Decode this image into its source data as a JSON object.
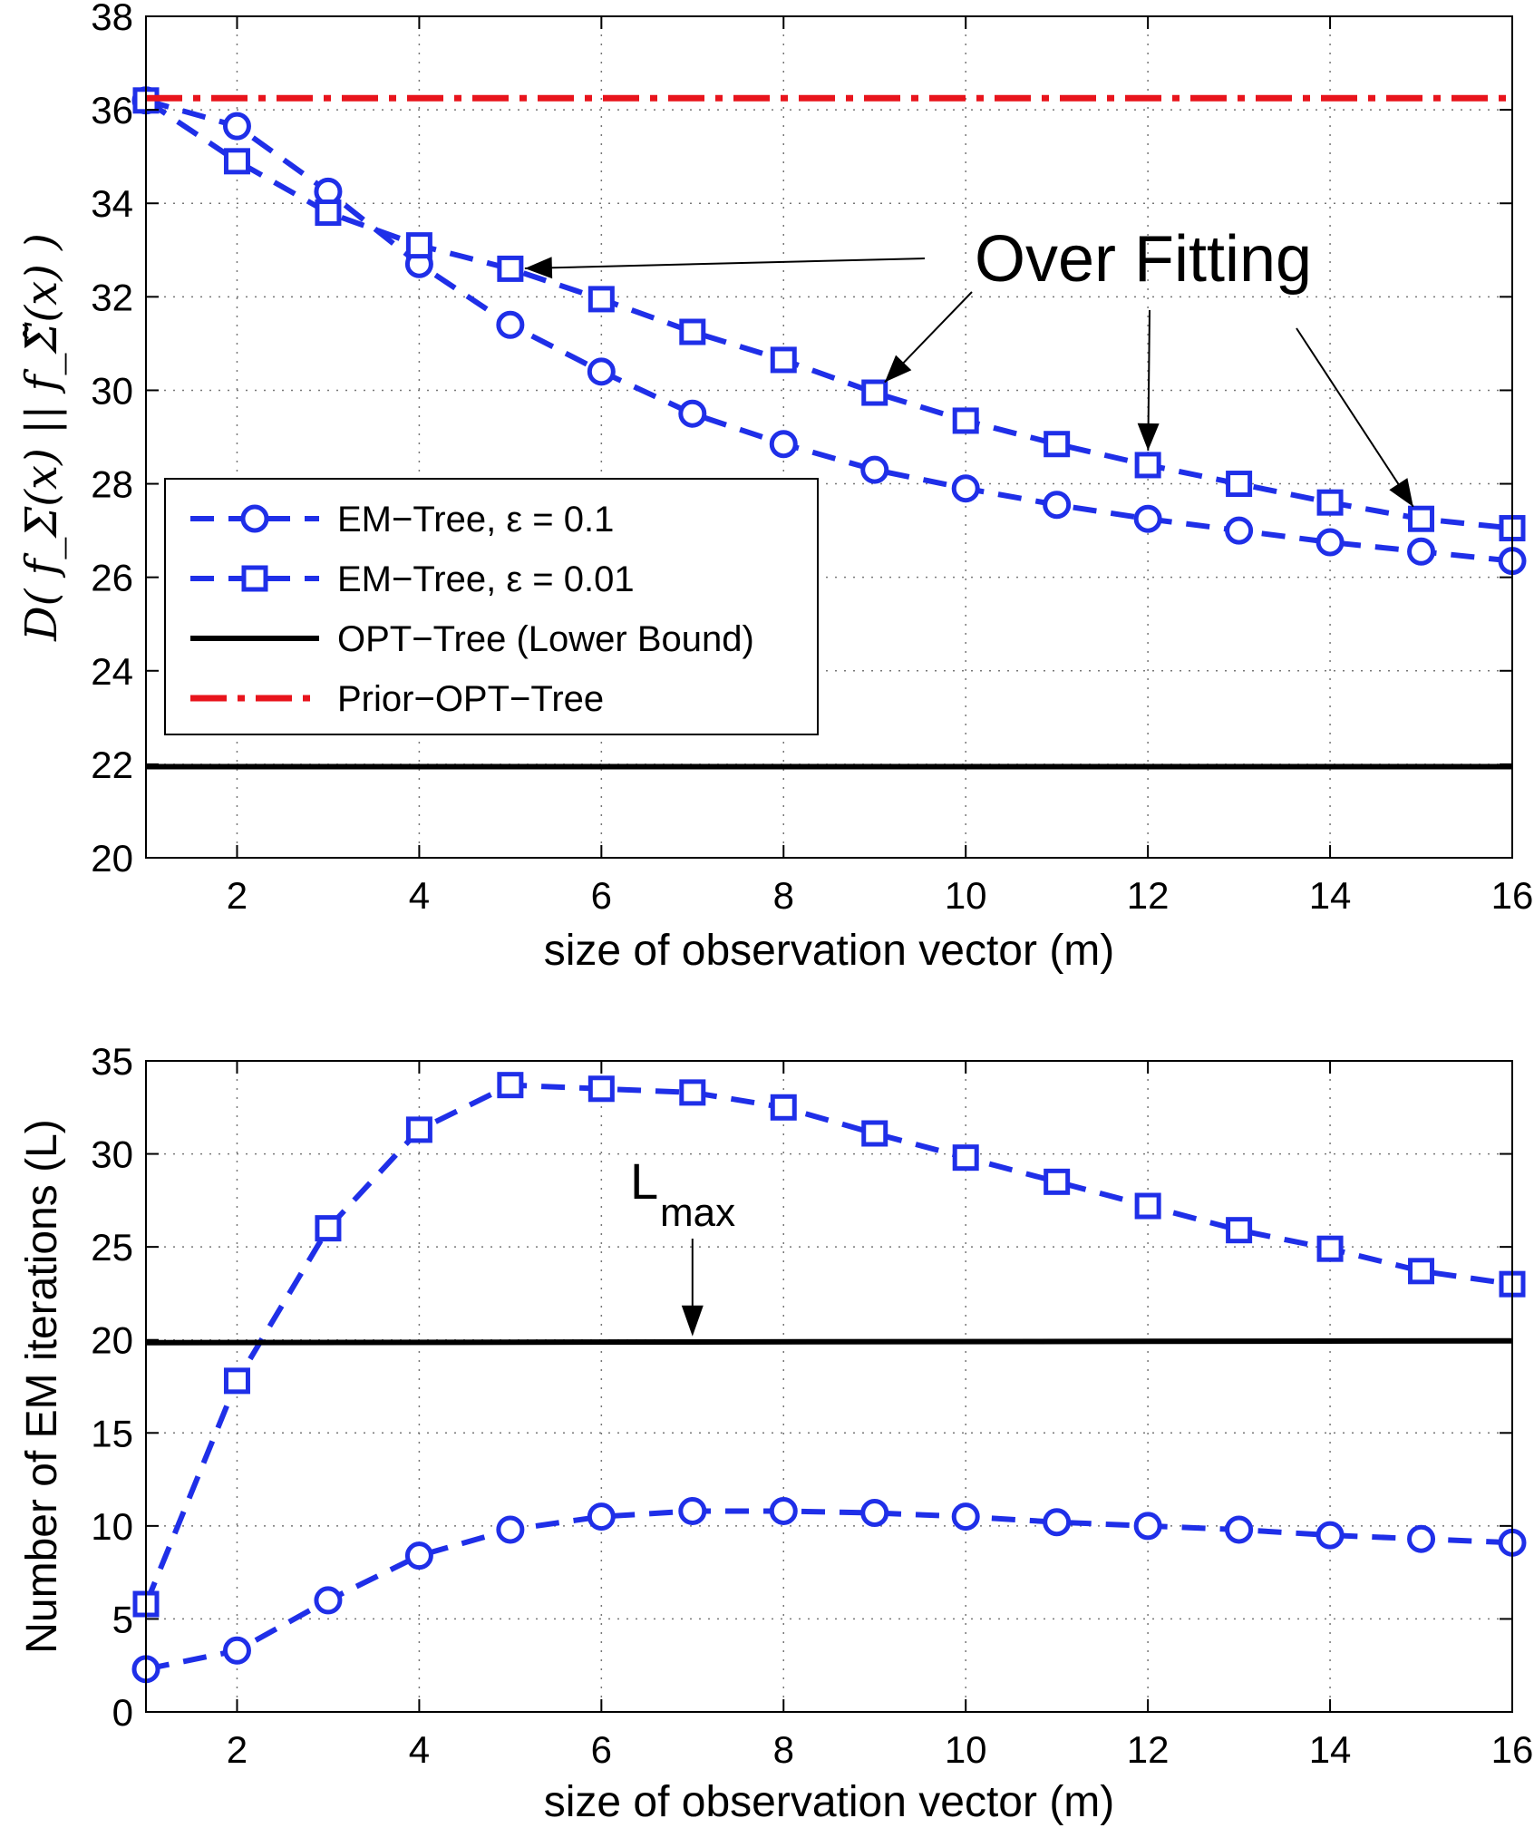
{
  "chart_data": [
    {
      "type": "line",
      "xlabel": "size of observation vector (m)",
      "ylabel": "D( f_Σ(x) || f_Σ̃(x) )",
      "xlim": [
        1,
        16
      ],
      "ylim": [
        20,
        38
      ],
      "xticks": [
        2,
        4,
        6,
        8,
        10,
        12,
        14,
        16
      ],
      "yticks": [
        20,
        22,
        24,
        26,
        28,
        30,
        32,
        34,
        36,
        38
      ],
      "grid": true,
      "legend": "lower-left",
      "series": [
        {
          "name": "EM−Tree, ε = 0.1",
          "marker": "circle",
          "color": "#1f2fe8",
          "x": [
            1,
            2,
            3,
            4,
            5,
            6,
            7,
            8,
            9,
            10,
            11,
            12,
            13,
            14,
            15,
            16
          ],
          "y": [
            36.2,
            35.65,
            34.25,
            32.7,
            31.4,
            30.4,
            29.5,
            28.85,
            28.3,
            27.9,
            27.55,
            27.25,
            27.0,
            26.75,
            26.55,
            26.35
          ]
        },
        {
          "name": "EM−Tree, ε = 0.01",
          "marker": "square",
          "color": "#1f2fe8",
          "x": [
            1,
            2,
            3,
            4,
            5,
            6,
            7,
            8,
            9,
            10,
            11,
            12,
            13,
            14,
            15,
            16
          ],
          "y": [
            36.2,
            34.9,
            33.8,
            33.1,
            32.6,
            31.95,
            31.25,
            30.65,
            29.95,
            29.35,
            28.85,
            28.4,
            28.0,
            27.6,
            27.25,
            27.05
          ]
        },
        {
          "name": "OPT−Tree (Lower Bound)",
          "marker": "none",
          "color": "#000000",
          "x": [
            1,
            16
          ],
          "y": [
            21.95,
            21.95
          ]
        },
        {
          "name": "Prior−OPT−Tree",
          "marker": "none",
          "color": "#e8141c",
          "x": [
            1,
            16
          ],
          "y": [
            36.25,
            36.25
          ]
        }
      ],
      "annotations": [
        {
          "text": "Over Fitting",
          "targets": [
            [
              5,
              32.6
            ],
            [
              9,
              29.95
            ],
            [
              12,
              28.4
            ],
            [
              15,
              27.25
            ]
          ]
        }
      ]
    },
    {
      "type": "line",
      "xlabel": "size of observation vector (m)",
      "ylabel": "Number of EM iterations (L)",
      "xlim": [
        1,
        16
      ],
      "ylim": [
        0,
        35
      ],
      "xticks": [
        2,
        4,
        6,
        8,
        10,
        12,
        14,
        16
      ],
      "yticks": [
        0,
        5,
        10,
        15,
        20,
        25,
        30,
        35
      ],
      "grid": true,
      "series": [
        {
          "name": "EM−Tree, ε = 0.1",
          "marker": "circle",
          "color": "#1f2fe8",
          "x": [
            1,
            2,
            3,
            4,
            5,
            6,
            7,
            8,
            9,
            10,
            11,
            12,
            13,
            14,
            15,
            16
          ],
          "y": [
            2.3,
            3.3,
            6.0,
            8.4,
            9.8,
            10.5,
            10.8,
            10.8,
            10.7,
            10.5,
            10.2,
            10.0,
            9.8,
            9.5,
            9.3,
            9.1
          ]
        },
        {
          "name": "EM−Tree, ε = 0.01",
          "marker": "square",
          "color": "#1f2fe8",
          "x": [
            1,
            2,
            3,
            4,
            5,
            6,
            7,
            8,
            9,
            10,
            11,
            12,
            13,
            14,
            15,
            16
          ],
          "y": [
            5.8,
            17.8,
            26.0,
            31.3,
            33.7,
            33.5,
            33.3,
            32.5,
            31.1,
            29.8,
            28.5,
            27.2,
            25.9,
            24.9,
            23.7,
            23.0
          ]
        },
        {
          "name": "Lmax",
          "marker": "none",
          "color": "#000000",
          "x": [
            1,
            16
          ],
          "y": [
            19.85,
            19.95
          ]
        }
      ],
      "annotations": [
        {
          "text": "L",
          "sub": "max",
          "target": [
            7,
            19.9
          ]
        }
      ]
    }
  ]
}
